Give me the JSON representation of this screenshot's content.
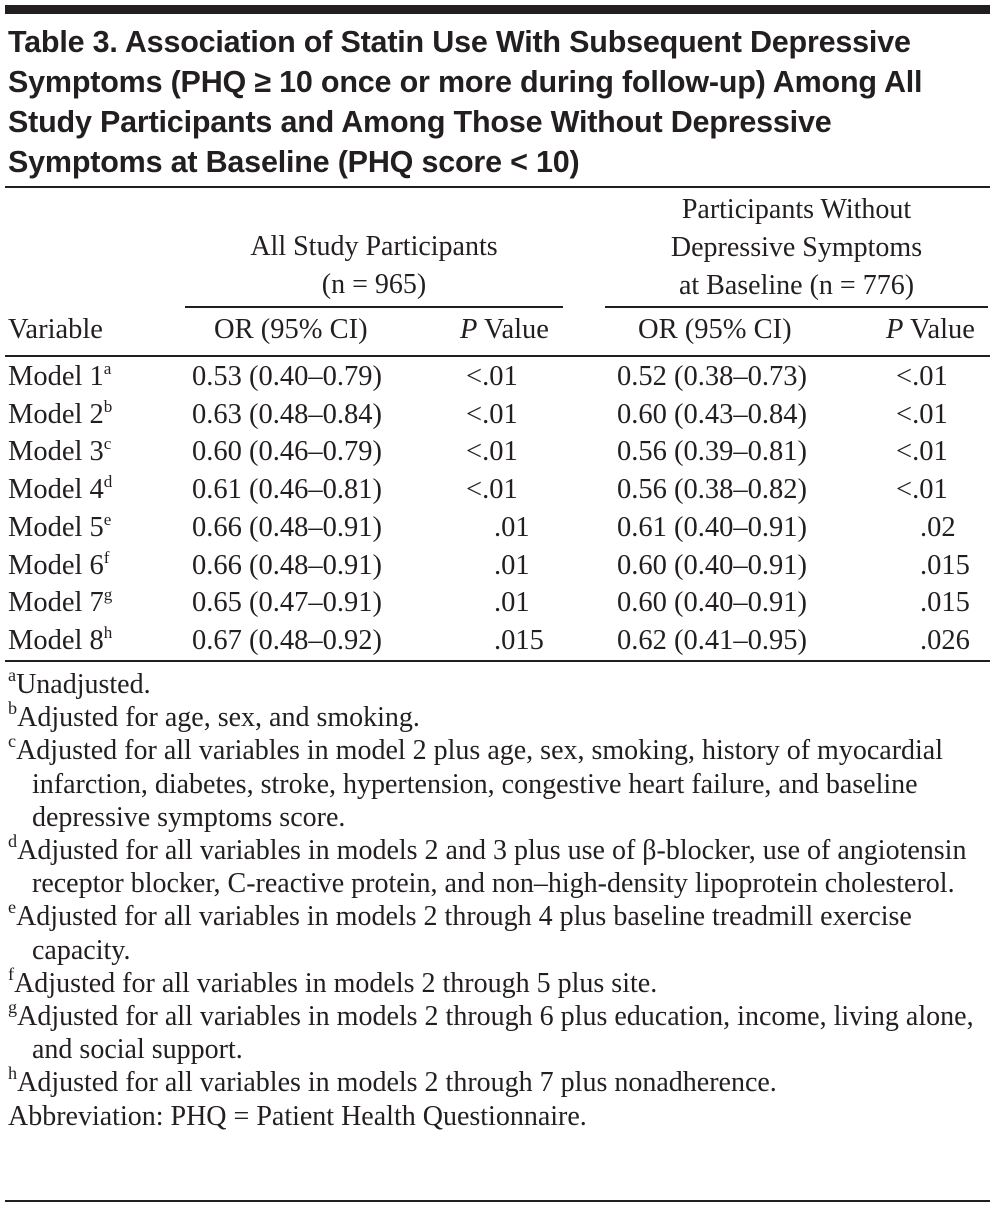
{
  "title": "Table 3. Association of Statin Use With Subsequent Depressive Symptoms (PHQ ≥ 10 once or more during follow-up) Among All Study Participants and Among Those Without Depressive Symptoms at Baseline (PHQ score < 10)",
  "header": {
    "group1": [
      "All Study Participants",
      "(n = 965)"
    ],
    "group2": [
      "Participants Without",
      "Depressive Symptoms",
      "at Baseline (n = 776)"
    ],
    "variable": "Variable",
    "or_label": "OR (95% CI)",
    "p_italic": "P",
    "p_rest": " Value"
  },
  "rows": [
    {
      "label": "Model 1",
      "sup": "a",
      "or1": "0.53 (0.40–0.79)",
      "p1": "<.01",
      "or2": "0.52 (0.38–0.73)",
      "p2": "<.01"
    },
    {
      "label": "Model 2",
      "sup": "b",
      "or1": "0.63 (0.48–0.84)",
      "p1": "<.01",
      "or2": "0.60 (0.43–0.84)",
      "p2": "<.01"
    },
    {
      "label": "Model 3",
      "sup": "c",
      "or1": "0.60 (0.46–0.79)",
      "p1": "<.01",
      "or2": "0.56 (0.39–0.81)",
      "p2": "<.01"
    },
    {
      "label": "Model 4",
      "sup": "d",
      "or1": "0.61 (0.46–0.81)",
      "p1": "<.01",
      "or2": "0.56 (0.38–0.82)",
      "p2": "<.01"
    },
    {
      "label": "Model 5",
      "sup": "e",
      "or1": "0.66 (0.48–0.91)",
      "p1": ".01",
      "or2": "0.61 (0.40–0.91)",
      "p2": ".02"
    },
    {
      "label": "Model 6",
      "sup": "f",
      "or1": "0.66 (0.48–0.91)",
      "p1": ".01",
      "or2": "0.60 (0.40–0.91)",
      "p2": ".015"
    },
    {
      "label": "Model 7",
      "sup": "g",
      "or1": "0.65 (0.47–0.91)",
      "p1": ".01",
      "or2": "0.60 (0.40–0.91)",
      "p2": ".015"
    },
    {
      "label": "Model 8",
      "sup": "h",
      "or1": "0.67 (0.48–0.92)",
      "p1": ".015",
      "or2": "0.62 (0.41–0.95)",
      "p2": ".026"
    }
  ],
  "footnotes": [
    {
      "sup": "a",
      "text": "Unadjusted."
    },
    {
      "sup": "b",
      "text": "Adjusted for age, sex, and smoking."
    },
    {
      "sup": "c",
      "text": "Adjusted for all variables in model 2 plus age, sex, smoking, history of myocardial infarction, diabetes, stroke, hypertension, congestive heart failure, and baseline depressive symptoms score."
    },
    {
      "sup": "d",
      "text": "Adjusted for all variables in models 2 and 3 plus use of β-blocker, use of angiotensin receptor blocker, C-reactive protein, and non–high-density lipoprotein cholesterol."
    },
    {
      "sup": "e",
      "text": "Adjusted for all variables in models 2 through 4 plus baseline treadmill exercise capacity."
    },
    {
      "sup": "f",
      "text": "Adjusted for all variables in models 2 through 5 plus site."
    },
    {
      "sup": "g",
      "text": "Adjusted for all variables in models 2 through 6 plus education, income, living alone, and social support."
    },
    {
      "sup": "h",
      "text": "Adjusted for all variables in models 2 through 7 plus nonadherence."
    }
  ],
  "abbreviation": "Abbreviation: PHQ = Patient Health Questionnaire."
}
